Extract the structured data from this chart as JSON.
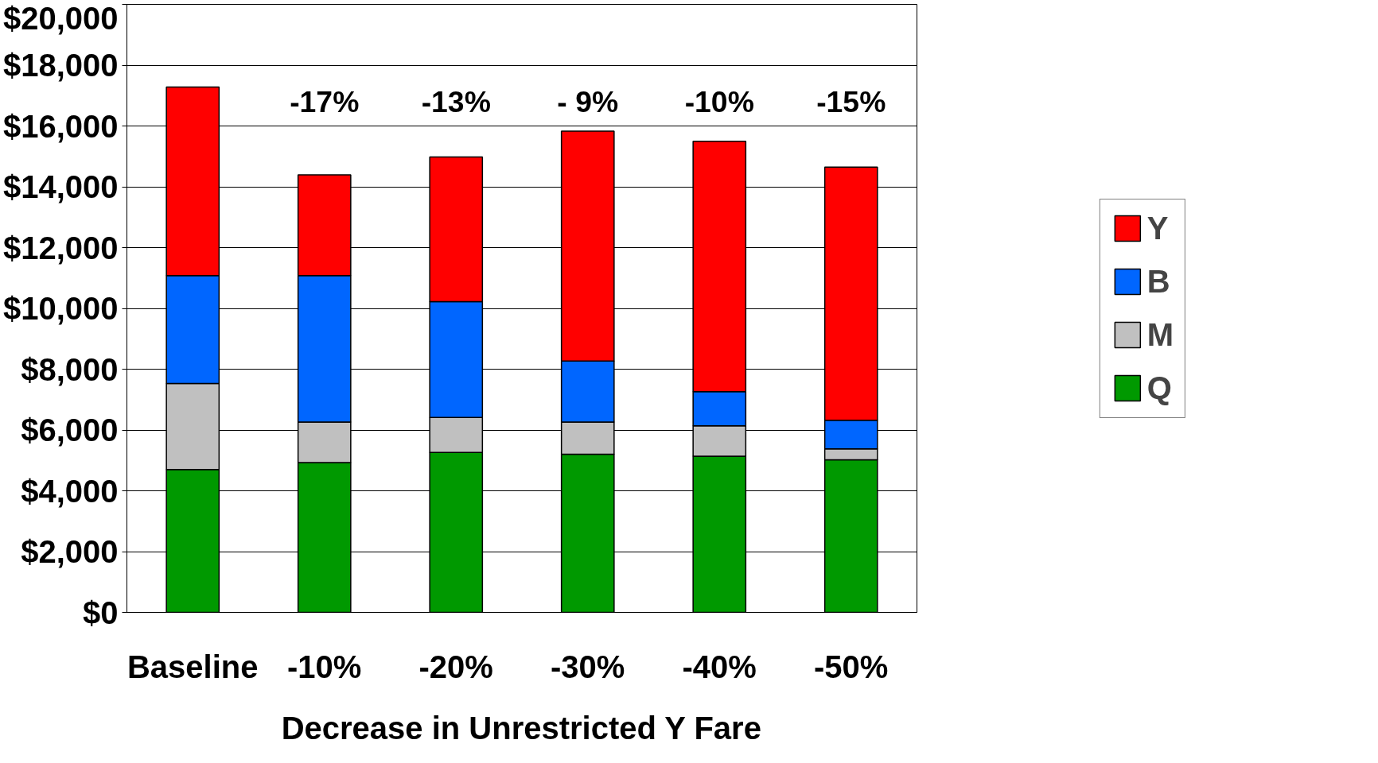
{
  "chart_data": {
    "type": "bar",
    "stacked": true,
    "xlabel": "Decrease in Unrestricted Y Fare",
    "categories": [
      "Baseline",
      "-10%",
      "-20%",
      "-30%",
      "-40%",
      "-50%"
    ],
    "series": [
      {
        "name": "Q",
        "color": "#009900",
        "values": [
          4700,
          4930,
          5260,
          5200,
          5140,
          5020
        ]
      },
      {
        "name": "M",
        "color": "#c0c0c0",
        "values": [
          2830,
          1330,
          1150,
          1060,
          1000,
          360
        ]
      },
      {
        "name": "B",
        "color": "#0066ff",
        "values": [
          3550,
          4820,
          3810,
          2010,
          1120,
          940
        ]
      },
      {
        "name": "Y",
        "color": "#ff0000",
        "values": [
          6200,
          3310,
          4760,
          7560,
          8240,
          8330
        ]
      }
    ],
    "ylim": [
      0,
      20000
    ],
    "yticks": [
      {
        "value": 0,
        "label": "$0"
      },
      {
        "value": 2000,
        "label": "$2,000"
      },
      {
        "value": 4000,
        "label": "$4,000"
      },
      {
        "value": 6000,
        "label": "$6,000"
      },
      {
        "value": 8000,
        "label": "$8,000"
      },
      {
        "value": 10000,
        "label": "$10,000"
      },
      {
        "value": 12000,
        "label": "$12,000"
      },
      {
        "value": 14000,
        "label": "$14,000"
      },
      {
        "value": 16000,
        "label": "$16,000"
      },
      {
        "value": 18000,
        "label": "$18,000"
      },
      {
        "value": 20000,
        "label": "$20,000"
      }
    ],
    "grid": "y",
    "legend": "right",
    "annotations": [
      "-17%",
      "-13%",
      "- 9%",
      "-10%",
      "-15%"
    ]
  }
}
